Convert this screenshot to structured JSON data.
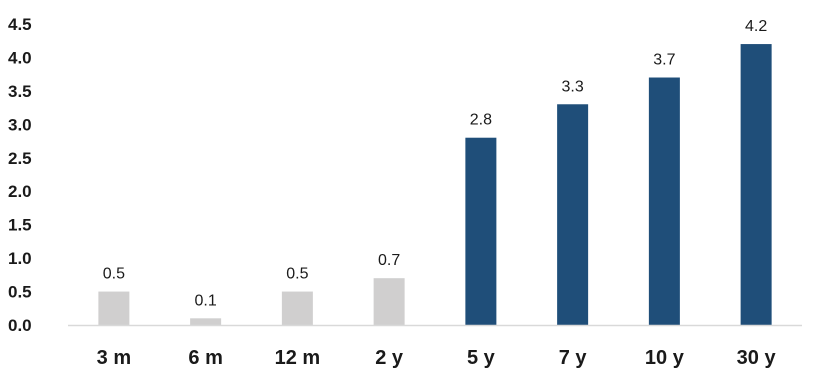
{
  "chart_data": {
    "type": "bar",
    "categories": [
      "3 m",
      "6 m",
      "12 m",
      "2 y",
      "5 y",
      "7 y",
      "10 y",
      "30 y"
    ],
    "values": [
      0.5,
      0.1,
      0.5,
      0.7,
      2.8,
      3.3,
      3.7,
      4.2
    ],
    "value_labels": [
      "0.5",
      "0.1",
      "0.5",
      "0.7",
      "2.8",
      "3.3",
      "3.7",
      "4.2"
    ],
    "yticks": [
      "0.0",
      "0.5",
      "1.0",
      "1.5",
      "2.0",
      "2.5",
      "3.0",
      "3.5",
      "4.0",
      "4.5"
    ],
    "ylim": [
      0,
      4.5
    ],
    "bar_colors": [
      "#d0cfcf",
      "#d0cfcf",
      "#d0cfcf",
      "#d0cfcf",
      "#1f4e79",
      "#1f4e79",
      "#1f4e79",
      "#1f4e79"
    ],
    "axis_color": "#d9d9d9",
    "grid": false,
    "title": "",
    "xlabel": "",
    "ylabel": ""
  }
}
